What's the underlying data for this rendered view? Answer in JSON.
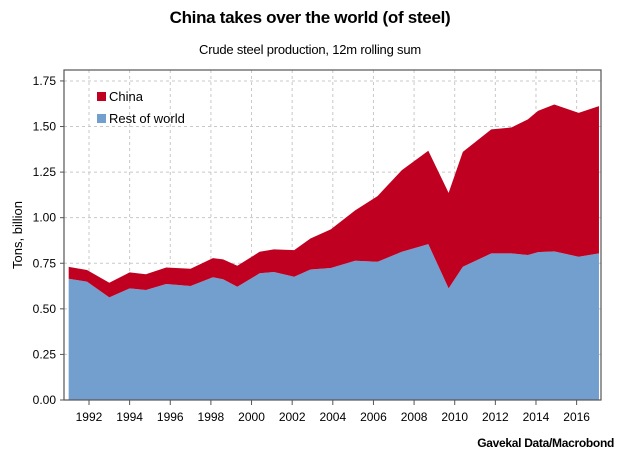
{
  "chart_data": {
    "type": "area",
    "stacked": true,
    "title": "China takes over the world (of steel)",
    "subtitle": "Crude steel production, 12m rolling sum",
    "ylabel": "Tons, billion",
    "xlabel": "",
    "source": "Gavekal Data/Macrobond",
    "xlim": [
      1990.77,
      2017.2
    ],
    "ylim": [
      0,
      1.81
    ],
    "x_ticks": [
      "1992",
      "1994",
      "1996",
      "1998",
      "2000",
      "2002",
      "2004",
      "2006",
      "2008",
      "2010",
      "2012",
      "2014",
      "2016"
    ],
    "y_ticks": [
      "0.00",
      "0.25",
      "0.50",
      "0.75",
      "1.00",
      "1.25",
      "1.50",
      "1.75"
    ],
    "grid": true,
    "legend_position": "top-left",
    "x": [
      1991.0,
      1991.9,
      1993.0,
      1994.0,
      1994.8,
      1995.8,
      1997.0,
      1998.1,
      1998.6,
      1999.3,
      2000.4,
      2001.1,
      2002.1,
      2002.9,
      2003.9,
      2005.1,
      2006.2,
      2007.4,
      2008.7,
      2009.7,
      2010.4,
      2011.8,
      2012.8,
      2013.6,
      2014.1,
      2014.9,
      2016.1,
      2017.1
    ],
    "series": [
      {
        "name": "Rest of world",
        "color": "#739fcf",
        "values": [
          0.665,
          0.649,
          0.563,
          0.612,
          0.603,
          0.636,
          0.625,
          0.673,
          0.662,
          0.621,
          0.695,
          0.702,
          0.676,
          0.716,
          0.724,
          0.764,
          0.758,
          0.813,
          0.855,
          0.612,
          0.731,
          0.804,
          0.804,
          0.795,
          0.811,
          0.815,
          0.786,
          0.804
        ]
      },
      {
        "name": "China",
        "color": "#c00020",
        "values": [
          0.065,
          0.064,
          0.08,
          0.088,
          0.087,
          0.091,
          0.095,
          0.105,
          0.109,
          0.115,
          0.118,
          0.124,
          0.146,
          0.17,
          0.212,
          0.276,
          0.36,
          0.448,
          0.512,
          0.524,
          0.63,
          0.68,
          0.691,
          0.744,
          0.775,
          0.806,
          0.789,
          0.808
        ]
      }
    ]
  }
}
